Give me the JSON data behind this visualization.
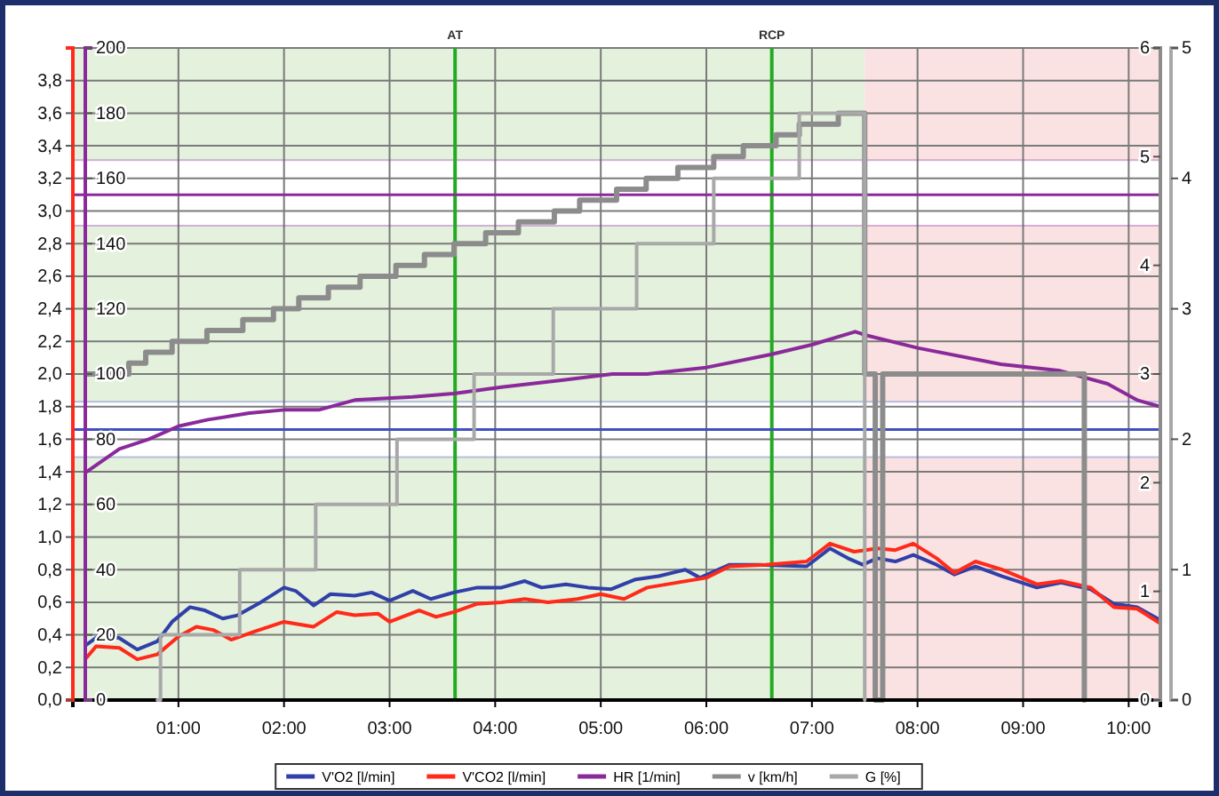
{
  "chart_data": [
    {
      "type": "line",
      "xlim": [
        0,
        10.3
      ],
      "xticks": [
        {
          "value": 1,
          "label": "01:00"
        },
        {
          "value": 2,
          "label": "02:00"
        },
        {
          "value": 3,
          "label": "03:00"
        },
        {
          "value": 4,
          "label": "04:00"
        },
        {
          "value": 5,
          "label": "05:00"
        },
        {
          "value": 6,
          "label": "06:00"
        },
        {
          "value": 7,
          "label": "07:00"
        },
        {
          "value": 8,
          "label": "08:00"
        },
        {
          "value": 9,
          "label": "09:00"
        },
        {
          "value": 10,
          "label": "10:00"
        }
      ],
      "ylim": [
        0,
        4.0
      ],
      "yticks": [
        {
          "value": 0,
          "label": "0,0"
        },
        {
          "value": 0.2,
          "label": "0,2"
        },
        {
          "value": 0.4,
          "label": "0,4"
        },
        {
          "value": 0.6,
          "label": "0,6"
        },
        {
          "value": 0.8,
          "label": "0,8"
        },
        {
          "value": 1.0,
          "label": "1,0"
        },
        {
          "value": 1.2,
          "label": "1,2"
        },
        {
          "value": 1.4,
          "label": "1,4"
        },
        {
          "value": 1.6,
          "label": "1,6"
        },
        {
          "value": 1.8,
          "label": "1,8"
        },
        {
          "value": 2.0,
          "label": "2,0"
        },
        {
          "value": 2.2,
          "label": "2,2"
        },
        {
          "value": 2.4,
          "label": "2,4"
        },
        {
          "value": 2.6,
          "label": "2,6"
        },
        {
          "value": 2.8,
          "label": "2,8"
        },
        {
          "value": 3.0,
          "label": "3,0"
        },
        {
          "value": 3.2,
          "label": "3,2"
        },
        {
          "value": 3.4,
          "label": "3,4"
        },
        {
          "value": 3.6,
          "label": "3,6"
        },
        {
          "value": 3.8,
          "label": "3,8"
        }
      ],
      "y2lim": [
        0,
        200
      ],
      "y2ticks": [
        0,
        20,
        40,
        60,
        80,
        100,
        120,
        140,
        160,
        180,
        200
      ],
      "y3lim": [
        0,
        6
      ],
      "y3ticks": [
        0,
        1,
        2,
        3,
        4,
        5,
        6
      ],
      "grid": true,
      "legend": "bottom",
      "bands": [
        {
          "axis": "x",
          "from": 0,
          "to": 7.5,
          "color": "#e4f1dc"
        },
        {
          "axis": "x",
          "from": 7.5,
          "to": 10.3,
          "color": "#fbe2e2"
        },
        {
          "axis": "y2",
          "from": 145.5,
          "to": 165.6,
          "color": "#ffffff"
        },
        {
          "axis": "y",
          "from": 1.49,
          "to": 1.83,
          "color": "#ffffff"
        }
      ],
      "ref_lines": [
        {
          "axis": "x",
          "value": 3.62,
          "label": "AT",
          "color": "#22aa22"
        },
        {
          "axis": "x",
          "value": 6.62,
          "label": "RCP",
          "color": "#22aa22"
        },
        {
          "axis": "y2",
          "value": 155,
          "color": "#8a2a9a"
        },
        {
          "axis": "y",
          "value": 1.66,
          "color": "#4050c0"
        }
      ],
      "series": [
        {
          "name": "V'O2 [l/min]",
          "color": "#3040a8",
          "x": [
            0.13,
            0.28,
            0.44,
            0.61,
            0.8,
            0.94,
            1.11,
            1.25,
            1.42,
            1.56,
            1.78,
            2.0,
            2.11,
            2.28,
            2.44,
            2.67,
            2.83,
            3.0,
            3.22,
            3.39,
            3.61,
            3.83,
            4.06,
            4.28,
            4.44,
            4.67,
            4.88,
            5.1,
            5.33,
            5.55,
            5.8,
            5.94,
            6.22,
            6.5,
            6.95,
            7.17,
            7.34,
            7.48,
            7.62,
            7.79,
            7.96,
            8.18,
            8.35,
            8.55,
            8.8,
            9.13,
            9.36,
            9.64,
            9.86,
            10.08,
            10.3
          ],
          "values": [
            0.34,
            0.41,
            0.38,
            0.31,
            0.36,
            0.48,
            0.57,
            0.55,
            0.5,
            0.52,
            0.6,
            0.69,
            0.67,
            0.58,
            0.65,
            0.64,
            0.66,
            0.61,
            0.67,
            0.62,
            0.66,
            0.69,
            0.69,
            0.73,
            0.69,
            0.71,
            0.69,
            0.68,
            0.74,
            0.76,
            0.8,
            0.75,
            0.83,
            0.83,
            0.82,
            0.93,
            0.87,
            0.83,
            0.87,
            0.85,
            0.89,
            0.83,
            0.77,
            0.82,
            0.76,
            0.69,
            0.72,
            0.68,
            0.59,
            0.57,
            0.49
          ]
        },
        {
          "name": "V'CO2 [l/min]",
          "color": "#ff2a1a",
          "x": [
            0.13,
            0.22,
            0.44,
            0.61,
            0.8,
            1.0,
            1.17,
            1.33,
            1.5,
            1.72,
            2.0,
            2.28,
            2.5,
            2.67,
            2.89,
            3.0,
            3.28,
            3.44,
            3.61,
            3.83,
            4.06,
            4.28,
            4.5,
            4.78,
            5.0,
            5.22,
            5.44,
            5.72,
            6.0,
            6.22,
            6.56,
            6.95,
            7.17,
            7.4,
            7.51,
            7.62,
            7.79,
            7.96,
            8.18,
            8.35,
            8.55,
            8.8,
            9.13,
            9.36,
            9.64,
            9.86,
            10.08,
            10.3
          ],
          "values": [
            0.26,
            0.33,
            0.32,
            0.25,
            0.28,
            0.39,
            0.45,
            0.43,
            0.37,
            0.42,
            0.48,
            0.45,
            0.54,
            0.52,
            0.53,
            0.48,
            0.55,
            0.51,
            0.54,
            0.59,
            0.6,
            0.62,
            0.6,
            0.62,
            0.65,
            0.62,
            0.69,
            0.72,
            0.75,
            0.82,
            0.83,
            0.85,
            0.96,
            0.91,
            0.92,
            0.93,
            0.92,
            0.96,
            0.87,
            0.78,
            0.85,
            0.8,
            0.71,
            0.73,
            0.69,
            0.57,
            0.56,
            0.47
          ]
        },
        {
          "name": "HR [1/min]",
          "color": "#8a2a9a",
          "axis": "y2",
          "x": [
            0.13,
            0.44,
            0.72,
            1.0,
            1.28,
            1.67,
            2.0,
            2.33,
            2.67,
            3.22,
            3.61,
            4.06,
            4.61,
            5.11,
            5.44,
            6.0,
            6.61,
            7.0,
            7.41,
            7.5,
            8.0,
            8.79,
            9.35,
            9.8,
            10.08,
            10.3
          ],
          "values": [
            70,
            77,
            80,
            84,
            86,
            88,
            89,
            89,
            92,
            93,
            94,
            96,
            98,
            100,
            100,
            102,
            106,
            109,
            113,
            112,
            108,
            103,
            101,
            97,
            92,
            90
          ]
        },
        {
          "name": "v [km/h]",
          "color": "#8c8c8c",
          "type": "step",
          "axis": "y3",
          "x": [
            0.13,
            0.53,
            0.69,
            0.94,
            1.27,
            1.61,
            1.9,
            2.14,
            2.42,
            2.72,
            3.06,
            3.33,
            3.61,
            3.91,
            4.22,
            4.56,
            4.8,
            5.15,
            5.43,
            5.73,
            6.07,
            6.35,
            6.66,
            6.88,
            7.25,
            7.5,
            7.6,
            7.67,
            9.58
          ],
          "values": [
            3.0,
            3.1,
            3.2,
            3.3,
            3.4,
            3.5,
            3.6,
            3.7,
            3.8,
            3.9,
            4.0,
            4.1,
            4.2,
            4.3,
            4.4,
            4.5,
            4.6,
            4.7,
            4.8,
            4.9,
            5.0,
            5.1,
            5.2,
            5.3,
            5.4,
            3.0,
            0,
            3.0,
            0
          ]
        }
      ]
    },
    {
      "type": "step",
      "xlim": [
        0,
        10.3
      ],
      "ylim": [
        0,
        5
      ],
      "yticks": [
        0,
        1,
        2,
        3,
        4,
        5
      ],
      "tick_labels": "y",
      "legend": "bottom",
      "series": [
        {
          "name": "G [%]",
          "color": "#a8a8a8",
          "x": [
            0.8,
            0.83,
            1.58,
            2.3,
            3.07,
            3.8,
            4.55,
            5.34,
            6.07,
            6.88,
            7.5
          ],
          "values": [
            0,
            0.5,
            1.0,
            1.5,
            2.0,
            2.5,
            3.0,
            3.5,
            4.0,
            4.5,
            0
          ]
        }
      ]
    }
  ]
}
